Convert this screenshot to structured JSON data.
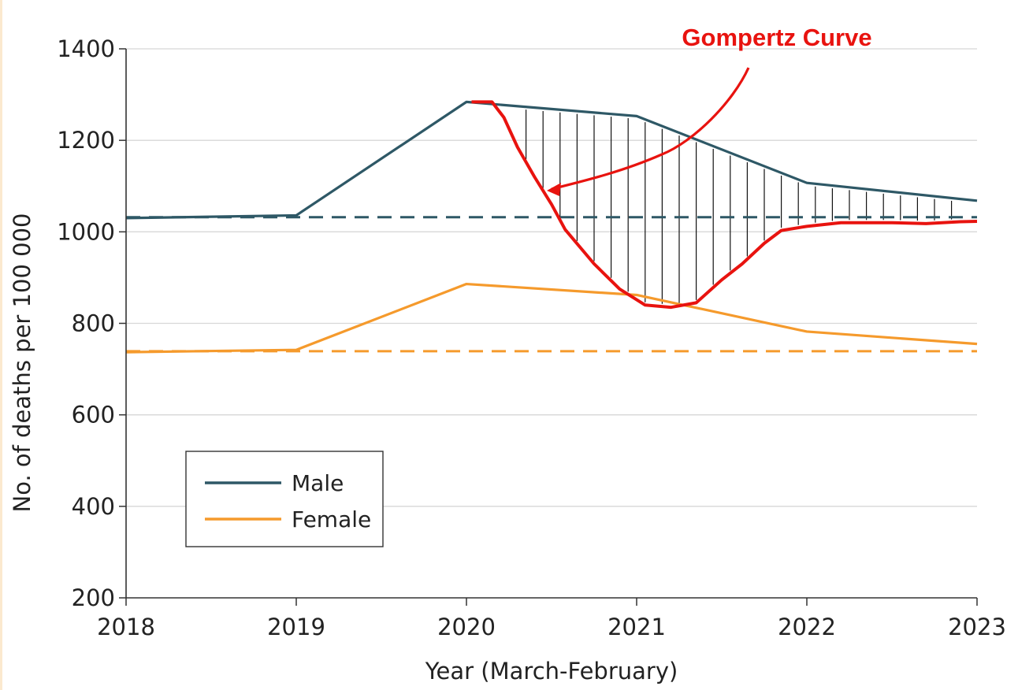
{
  "chart_data": {
    "type": "line",
    "xlabel": "Year (March-February)",
    "ylabel": "No. of deaths per 100 000",
    "xlim": [
      2018,
      2023
    ],
    "ylim": [
      200,
      1400
    ],
    "x_ticks": [
      "2018",
      "2019",
      "2020",
      "2021",
      "2022",
      "2023"
    ],
    "y_ticks": [
      "200",
      "400",
      "600",
      "800",
      "1000",
      "1200",
      "1400"
    ],
    "grid": "horizontal",
    "legend_position": "lower-left",
    "series": [
      {
        "name": "Male",
        "color": "#2e5866",
        "style": "solid",
        "x": [
          2018,
          2019,
          2020,
          2021,
          2022,
          2023
        ],
        "y": [
          1030,
          1036,
          1284,
          1253,
          1107,
          1068
        ]
      },
      {
        "name": "Female",
        "color": "#f59a2c",
        "style": "solid",
        "x": [
          2018,
          2019,
          2020,
          2021,
          2022,
          2023
        ],
        "y": [
          737,
          742,
          886,
          862,
          782,
          755
        ]
      }
    ],
    "reference_lines": [
      {
        "color": "#2e5866",
        "style": "dashed",
        "y": 1032
      },
      {
        "color": "#f59a2c",
        "style": "dashed",
        "y": 739
      }
    ],
    "overlay_curve": {
      "color": "#e8130f",
      "x": [
        2020.03,
        2020.15,
        2020.22,
        2020.3,
        2020.4,
        2020.5,
        2020.58,
        2020.75,
        2020.9,
        2021.05,
        2021.2,
        2021.35,
        2021.5,
        2021.62,
        2021.75,
        2021.85,
        2022.0,
        2022.2,
        2022.5,
        2022.7,
        2022.9,
        2023.0
      ],
      "y": [
        1284,
        1284,
        1250,
        1185,
        1120,
        1060,
        1005,
        930,
        875,
        840,
        835,
        845,
        895,
        930,
        975,
        1003,
        1012,
        1020,
        1020,
        1018,
        1022,
        1023
      ]
    },
    "annotation": {
      "text": "Gompertz Curve",
      "color": "#e8130f"
    }
  }
}
